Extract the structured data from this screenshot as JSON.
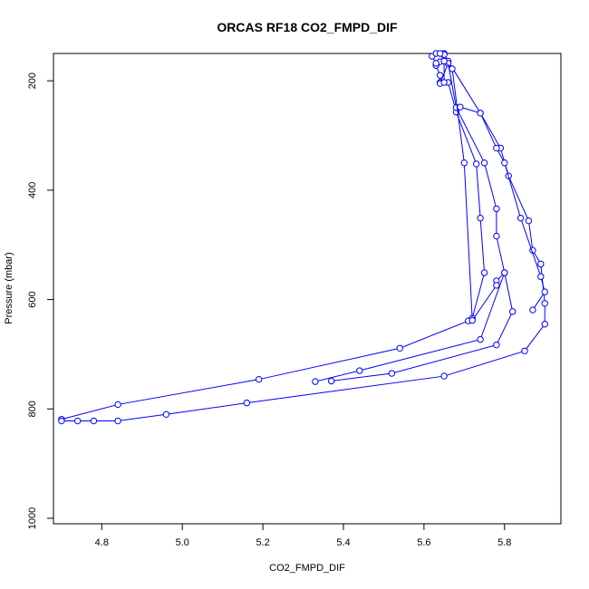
{
  "chart_data": {
    "type": "line",
    "title": "ORCAS RF18 CO2_FMPD_DIF",
    "xlabel": "CO2_FMPD_DIF",
    "ylabel": "Pressure (mbar)",
    "xlim": [
      4.68,
      5.94
    ],
    "ylim": [
      1010,
      150
    ],
    "y_reversed": true,
    "xticks": [
      4.8,
      5.0,
      5.2,
      5.4,
      5.6,
      5.8
    ],
    "xtick_labels": [
      "4.8",
      "5.0",
      "5.2",
      "5.4",
      "5.6",
      "5.8"
    ],
    "yticks": [
      200,
      400,
      600,
      800,
      1000
    ],
    "ytick_labels": [
      "200",
      "400",
      "600",
      "800",
      "1000"
    ],
    "grid": false,
    "legend": "none",
    "series_color": "#0000ff",
    "series": [
      {
        "x": [
          4.7,
          4.84,
          5.19,
          5.54,
          5.71,
          5.72,
          5.75,
          5.74,
          5.73,
          5.68,
          5.66,
          5.64,
          5.64,
          5.63,
          5.64,
          5.63,
          5.62,
          5.63
        ],
        "y": [
          819,
          792,
          746,
          689,
          639,
          634,
          551,
          451,
          352,
          257,
          203,
          203,
          190,
          172,
          165,
          168,
          155,
          150
        ]
      },
      {
        "x": [
          4.7,
          4.74,
          4.78,
          4.84,
          4.96,
          5.16,
          5.65,
          5.85,
          5.9,
          5.9,
          5.89,
          5.87,
          5.86,
          5.81,
          5.79,
          5.74,
          5.66,
          5.65
        ],
        "y": [
          822,
          822,
          822,
          822,
          810,
          789,
          740,
          694,
          645,
          607,
          535,
          510,
          456,
          374,
          323,
          259,
          164,
          150
        ]
      },
      {
        "x": [
          5.33,
          5.44,
          5.74,
          5.8,
          5.78,
          5.78,
          5.75,
          5.68,
          5.66,
          5.64,
          5.65,
          5.65
        ],
        "y": [
          750,
          730,
          673,
          551,
          484,
          434,
          350,
          249,
          168,
          205,
          203,
          152
        ]
      },
      {
        "x": [
          5.37,
          5.52,
          5.78,
          5.82,
          5.8,
          5.78,
          5.78,
          5.72,
          5.7,
          5.67,
          5.65,
          5.64
        ],
        "y": [
          749,
          735,
          683,
          622,
          551,
          566,
          574,
          638,
          350,
          178,
          164,
          150
        ]
      },
      {
        "x": [
          5.87,
          5.9,
          5.89,
          5.84,
          5.8,
          5.78,
          5.74,
          5.69
        ],
        "y": [
          619,
          586,
          558,
          451,
          350,
          323,
          259,
          248
        ]
      }
    ]
  }
}
